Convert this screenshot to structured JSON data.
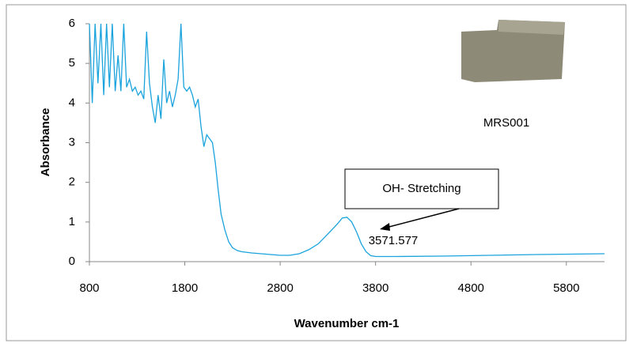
{
  "chart_data": {
    "type": "line",
    "x_label": "Wavenumber cm-1",
    "y_label": "Absorbance",
    "annotations": [
      "MRS001",
      "OH- Stretching",
      "3571.577"
    ],
    "x": [
      800,
      830,
      860,
      890,
      920,
      950,
      980,
      1010,
      1040,
      1070,
      1100,
      1130,
      1160,
      1190,
      1220,
      1250,
      1280,
      1310,
      1340,
      1370,
      1400,
      1430,
      1460,
      1490,
      1520,
      1550,
      1580,
      1610,
      1640,
      1670,
      1700,
      1730,
      1760,
      1790,
      1820,
      1850,
      1880,
      1910,
      1940,
      1970,
      2000,
      2030,
      2060,
      2090,
      2120,
      2150,
      2180,
      2220,
      2260,
      2300,
      2350,
      2400,
      2500,
      2600,
      2700,
      2800,
      2900,
      3000,
      3100,
      3200,
      3300,
      3400,
      3450,
      3500,
      3550,
      3600,
      3650,
      3700,
      3750,
      3800,
      4000,
      4500,
      5000,
      5500,
      6200
    ],
    "series": [
      {
        "color": "#1aa3dd",
        "values": [
          6,
          4.0,
          6,
          4.5,
          6,
          4.2,
          6,
          4.4,
          6,
          4.3,
          5.2,
          4.3,
          6,
          4.4,
          4.6,
          4.3,
          4.4,
          4.2,
          4.3,
          4.1,
          5.8,
          4.5,
          3.9,
          3.5,
          4.2,
          3.6,
          5.1,
          4.0,
          4.3,
          3.9,
          4.2,
          4.6,
          6,
          4.4,
          4.3,
          4.4,
          4.2,
          3.9,
          4.1,
          3.4,
          2.9,
          3.2,
          3.1,
          3.0,
          2.5,
          1.8,
          1.2,
          0.8,
          0.5,
          0.35,
          0.28,
          0.25,
          0.22,
          0.2,
          0.18,
          0.16,
          0.16,
          0.2,
          0.3,
          0.45,
          0.7,
          0.95,
          1.1,
          1.12,
          1.0,
          0.75,
          0.45,
          0.25,
          0.15,
          0.13,
          0.13,
          0.14,
          0.16,
          0.18,
          0.2
        ]
      }
    ],
    "xlim": [
      800,
      6200
    ],
    "xticks": [
      800,
      1800,
      2800,
      3800,
      4800,
      5800
    ],
    "ylim": [
      0,
      6
    ],
    "yticks": [
      0,
      1,
      2,
      3,
      4,
      5,
      6
    ]
  }
}
